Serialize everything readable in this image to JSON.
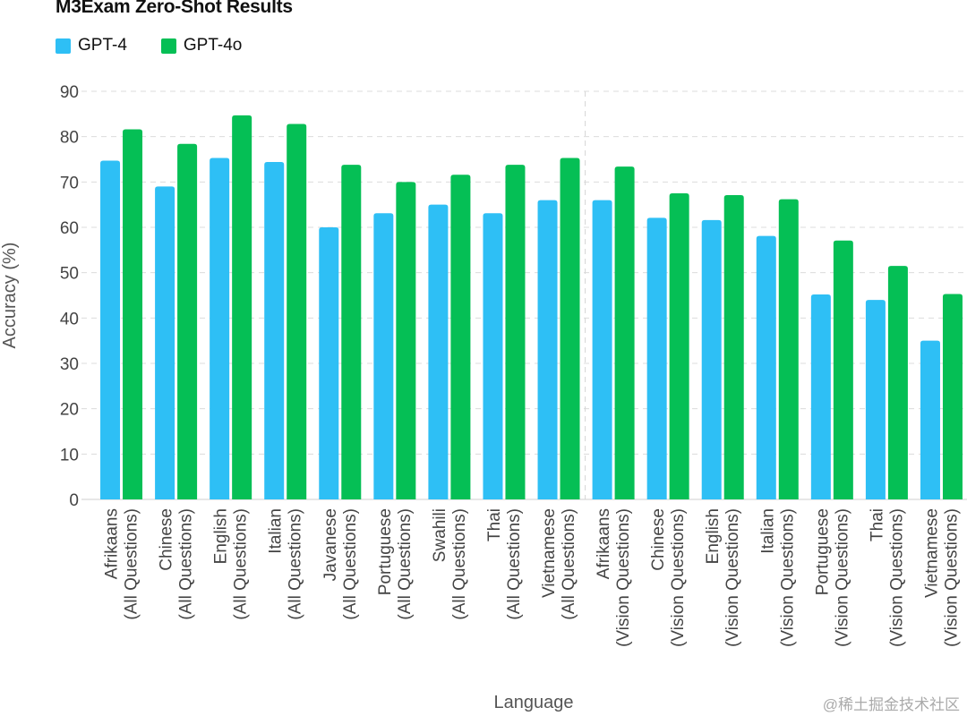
{
  "chart_data": {
    "type": "bar",
    "title": "M3Exam Zero-Shot Results",
    "xlabel": "Language",
    "ylabel": "Accuracy (%)",
    "ylim": [
      0,
      90
    ],
    "yticks": [
      0,
      10,
      20,
      30,
      40,
      50,
      60,
      70,
      80,
      90
    ],
    "grid": true,
    "legend_position": "top-left",
    "categories": [
      [
        "Afrikaans",
        "(All Questions)"
      ],
      [
        "Chinese",
        "(All Questions)"
      ],
      [
        "English",
        "(All Questions)"
      ],
      [
        "Italian",
        "(All Questions)"
      ],
      [
        "Javanese",
        "(All Questions)"
      ],
      [
        "Portuguese",
        "(All Questions)"
      ],
      [
        "Swahili",
        "(All Questions)"
      ],
      [
        "Thai",
        "(All Questions)"
      ],
      [
        "Vietnamese",
        "(All Questions)"
      ],
      [
        "Afrikaans",
        "(Vision Questions)"
      ],
      [
        "Chinese",
        "(Vision Questions)"
      ],
      [
        "English",
        "(Vision Questions)"
      ],
      [
        "Italian",
        "(Vision Questions)"
      ],
      [
        "Portuguese",
        "(Vision Questions)"
      ],
      [
        "Thai",
        "(Vision Questions)"
      ],
      [
        "Vietnamese",
        "(Vision Questions)"
      ]
    ],
    "series": [
      {
        "name": "GPT-4",
        "color": "#2EBFF5",
        "values": [
          74.7,
          69.0,
          75.3,
          74.4,
          60.0,
          63.1,
          65.0,
          63.1,
          66.0,
          66.0,
          62.1,
          61.6,
          58.1,
          45.2,
          44.0,
          35.0
        ]
      },
      {
        "name": "GPT-4o",
        "color": "#05BF55",
        "values": [
          81.6,
          78.4,
          84.7,
          82.8,
          73.8,
          70.0,
          71.6,
          73.8,
          75.3,
          73.4,
          67.5,
          67.1,
          66.2,
          57.1,
          51.5,
          45.3
        ]
      }
    ],
    "divider_after_index": 8
  },
  "watermark": "@稀土掘金技术社区"
}
